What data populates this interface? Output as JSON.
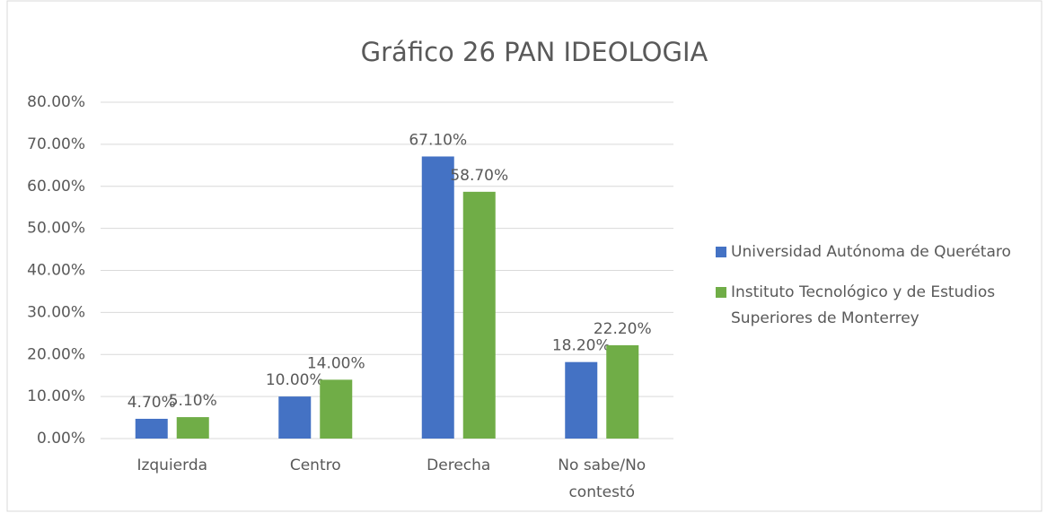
{
  "chart_data": {
    "type": "bar",
    "title": "Gráfico 26 PAN IDEOLOGIA",
    "categories": [
      "Izquierda",
      "Centro",
      "Derecha",
      "No sabe/No contestó"
    ],
    "series": [
      {
        "name": "Universidad Autónoma de Querétaro",
        "color": "#4472c4",
        "values": [
          4.7,
          10,
          67.1,
          18.2
        ],
        "value_labels": [
          "4.70%",
          "10.00%",
          "67.10%",
          "18.20%"
        ]
      },
      {
        "name": "Instituto Tecnológico y de Estudios Superiores de Monterrey",
        "color": "#70ad47",
        "values": [
          5.1,
          14,
          58.7,
          22.2
        ],
        "value_labels": [
          "5.10%",
          "14.00%",
          "58.70%",
          "22.20%"
        ]
      }
    ],
    "ylim": [
      0,
      80
    ],
    "yticks": [
      {
        "value": 0,
        "label": "0.00%"
      },
      {
        "value": 10,
        "label": "10.00%"
      },
      {
        "value": 20,
        "label": "20.00%"
      },
      {
        "value": 30,
        "label": "30.00%"
      },
      {
        "value": 40,
        "label": "40.00%"
      },
      {
        "value": 50,
        "label": "50.00%"
      },
      {
        "value": 60,
        "label": "60.00%"
      },
      {
        "value": 70,
        "label": "70.00%"
      },
      {
        "value": 80,
        "label": "80.00%"
      }
    ],
    "grid": true,
    "legend": "right"
  }
}
